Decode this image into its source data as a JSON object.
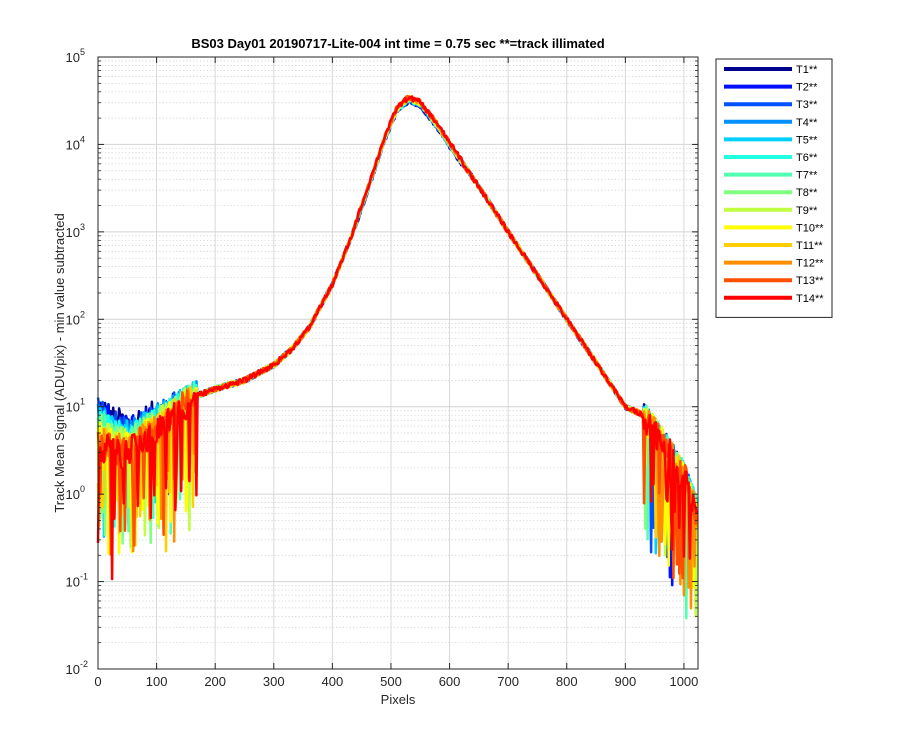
{
  "chart_data": {
    "type": "line",
    "title": "BS03 Day01 20190717-Lite-004 int time = 0.75 sec   **=track illimated",
    "xlabel": "Pixels",
    "ylabel": "Track Mean Signal (ADU/pix) - min value subtracted",
    "xlim": [
      0,
      1024
    ],
    "ylim": [
      0.01,
      100000
    ],
    "yscale": "log",
    "grid": true,
    "minor_grid": true,
    "legend_position": "outside-top-right",
    "x_ticks": [
      "0",
      "100",
      "200",
      "300",
      "400",
      "500",
      "600",
      "700",
      "800",
      "900",
      "1000"
    ],
    "y_ticks": [
      {
        "base": "10",
        "exp": "-2"
      },
      {
        "base": "10",
        "exp": "-1"
      },
      {
        "base": "10",
        "exp": "0"
      },
      {
        "base": "10",
        "exp": "1"
      },
      {
        "base": "10",
        "exp": "2"
      },
      {
        "base": "10",
        "exp": "3"
      },
      {
        "base": "10",
        "exp": "4"
      },
      {
        "base": "10",
        "exp": "5"
      }
    ],
    "profile": {
      "x": [
        0,
        10,
        25,
        50,
        100,
        150,
        200,
        250,
        300,
        330,
        360,
        400,
        430,
        460,
        490,
        510,
        530,
        550,
        580,
        600,
        650,
        700,
        750,
        800,
        850,
        900,
        950,
        980,
        1000,
        1010,
        1024
      ],
      "y": [
        10,
        9,
        7,
        6,
        8,
        12,
        16,
        20,
        30,
        45,
        80,
        250,
        800,
        3000,
        12000,
        25000,
        33000,
        29000,
        16000,
        10000,
        3300,
        1000,
        320,
        100,
        32,
        10,
        7,
        5,
        4,
        3,
        2
      ]
    },
    "series": [
      {
        "name": "T1**",
        "color": "#00008f"
      },
      {
        "name": "T2**",
        "color": "#0010ff"
      },
      {
        "name": "T3**",
        "color": "#0050ff"
      },
      {
        "name": "T4**",
        "color": "#0090ff"
      },
      {
        "name": "T5**",
        "color": "#00d0ff"
      },
      {
        "name": "T6**",
        "color": "#20ffdf"
      },
      {
        "name": "T7**",
        "color": "#50ffaf"
      },
      {
        "name": "T8**",
        "color": "#80ff80"
      },
      {
        "name": "T9**",
        "color": "#bfff40"
      },
      {
        "name": "T10**",
        "color": "#ffff00"
      },
      {
        "name": "T11**",
        "color": "#ffcf00"
      },
      {
        "name": "T12**",
        "color": "#ff8f00"
      },
      {
        "name": "T13**",
        "color": "#ff4f00"
      },
      {
        "name": "T14**",
        "color": "#ff0000"
      }
    ]
  }
}
